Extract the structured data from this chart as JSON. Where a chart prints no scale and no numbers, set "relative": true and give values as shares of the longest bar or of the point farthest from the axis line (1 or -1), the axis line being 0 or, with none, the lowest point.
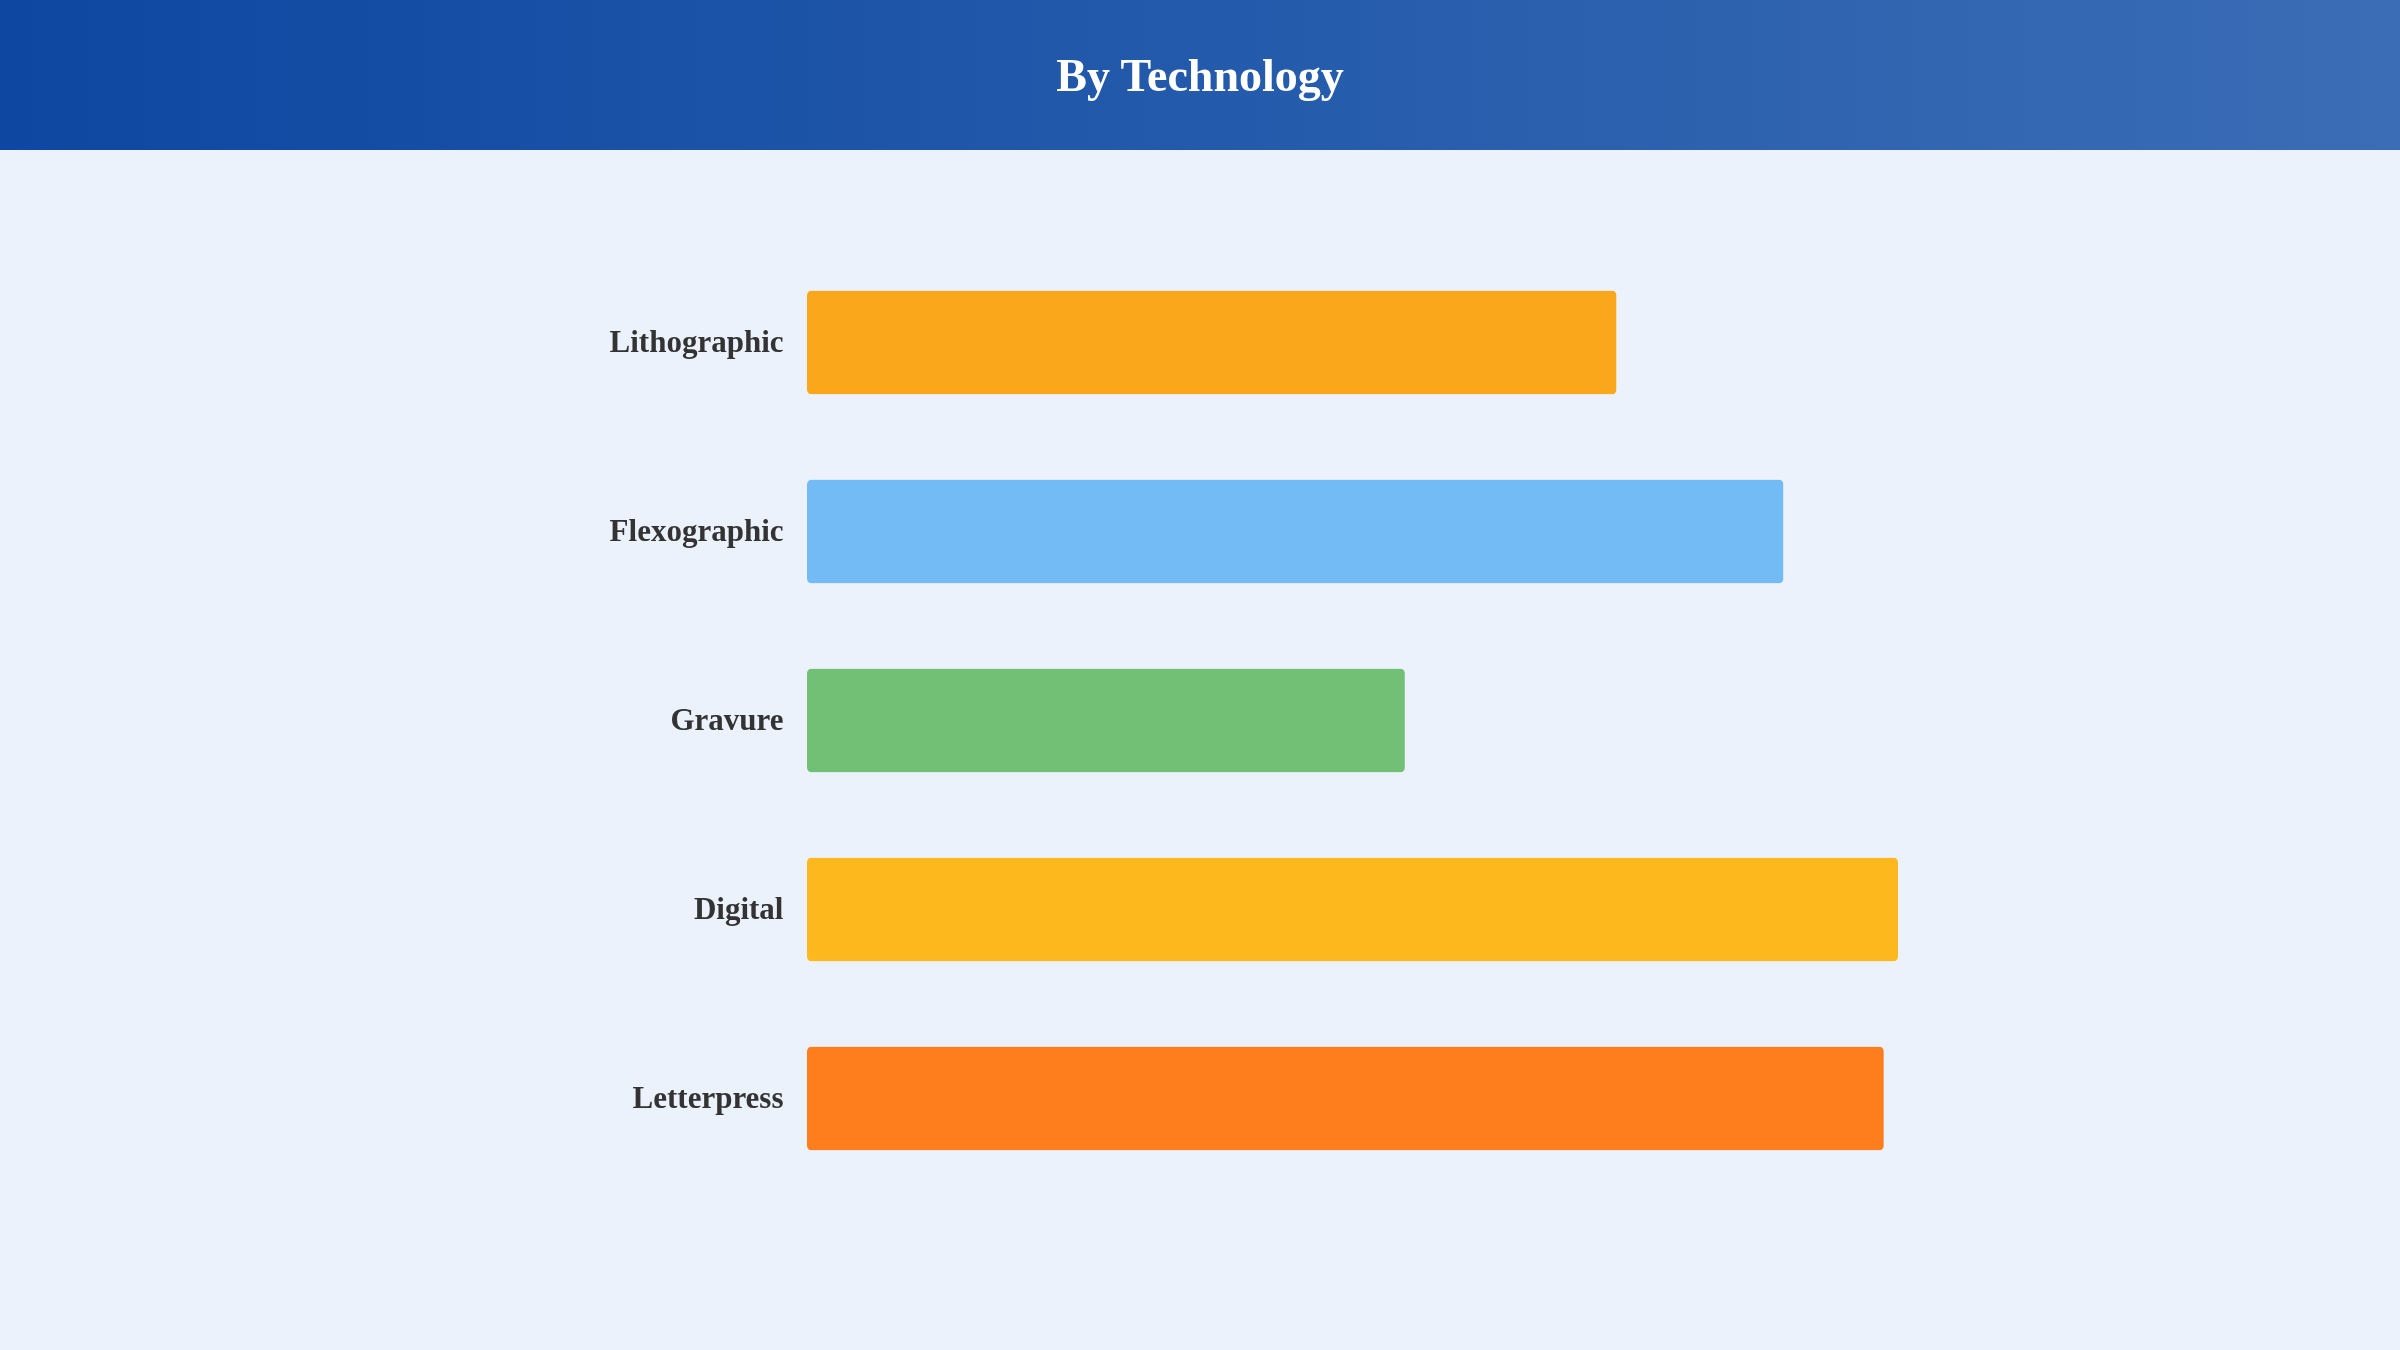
{
  "chart_data": {
    "type": "bar",
    "title": "By Technology",
    "orientation": "horizontal",
    "relative": true,
    "categories": [
      "Lithographic",
      "Flexographic",
      "Gravure",
      "Digital",
      "Letterpress"
    ],
    "values": [
      0.742,
      0.895,
      0.548,
      1,
      0.987
    ],
    "colors": [
      "#fba71b",
      "#72bbf5",
      "#72c076",
      "#fdb81e",
      "#fe7e1d"
    ]
  }
}
